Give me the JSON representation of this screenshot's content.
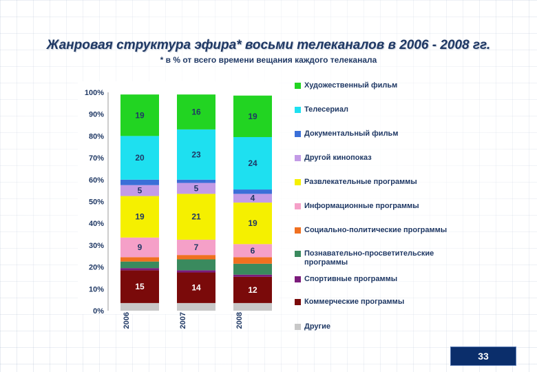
{
  "slide": {
    "title": "Жанровая структура эфира* восьми телеканалов в 2006 - 2008 гг.",
    "subtitle": "* в % от всего времени вещания каждого телеканала",
    "page_number": "33"
  },
  "chart_data": {
    "type": "bar",
    "stacked": true,
    "categories": [
      "2006",
      "2007",
      "2008"
    ],
    "ylim": [
      0,
      100
    ],
    "yticks": [
      "0%",
      "10%",
      "20%",
      "30%",
      "40%",
      "50%",
      "60%",
      "70%",
      "80%",
      "90%",
      "100%"
    ],
    "legend_position": "right",
    "series": [
      {
        "name": "Другие",
        "color": "#c8c8c8",
        "values": [
          3.5,
          3.5,
          3.5
        ]
      },
      {
        "name": "Коммерческие программы",
        "color": "#7a0a0a",
        "values": [
          15,
          14,
          12
        ]
      },
      {
        "name": "Спортивные программы",
        "color": "#7b1b7b",
        "values": [
          1,
          1,
          1
        ]
      },
      {
        "name": "Познавательно-просветительские программы",
        "color": "#3a8a5e",
        "values": [
          3,
          5,
          5
        ]
      },
      {
        "name": "Социально-политические программы",
        "color": "#f07020",
        "values": [
          2,
          2,
          3
        ]
      },
      {
        "name": "Информационные программы",
        "color": "#f5a0c8",
        "values": [
          9,
          7,
          6
        ]
      },
      {
        "name": "Развлекательные программы",
        "color": "#f5f000",
        "values": [
          19,
          21,
          19
        ]
      },
      {
        "name": "Другой кинопоказ",
        "color": "#c39be6",
        "values": [
          5,
          5,
          4
        ]
      },
      {
        "name": "Документальный фильм",
        "color": "#3a6fd8",
        "values": [
          2.5,
          1.5,
          2
        ]
      },
      {
        "name": "Телесериал",
        "color": "#1ee0f0",
        "values": [
          20,
          23,
          24
        ]
      },
      {
        "name": "Художественный фильм",
        "color": "#22d422",
        "values": [
          19,
          16,
          19
        ]
      }
    ],
    "data_labels": [
      {
        "series": "Художественный фильм",
        "values": [
          "19",
          "16",
          "19"
        ]
      },
      {
        "series": "Телесериал",
        "values": [
          "20",
          "23",
          "24"
        ]
      },
      {
        "series": "Другой кинопоказ",
        "values": [
          "5",
          "5",
          "4"
        ]
      },
      {
        "series": "Развлекательные программы",
        "values": [
          "19",
          "21",
          "19"
        ]
      },
      {
        "series": "Информационные программы",
        "values": [
          "9",
          "7",
          "6"
        ]
      },
      {
        "series": "Коммерческие программы",
        "values": [
          "15",
          "14",
          "12"
        ]
      }
    ]
  }
}
